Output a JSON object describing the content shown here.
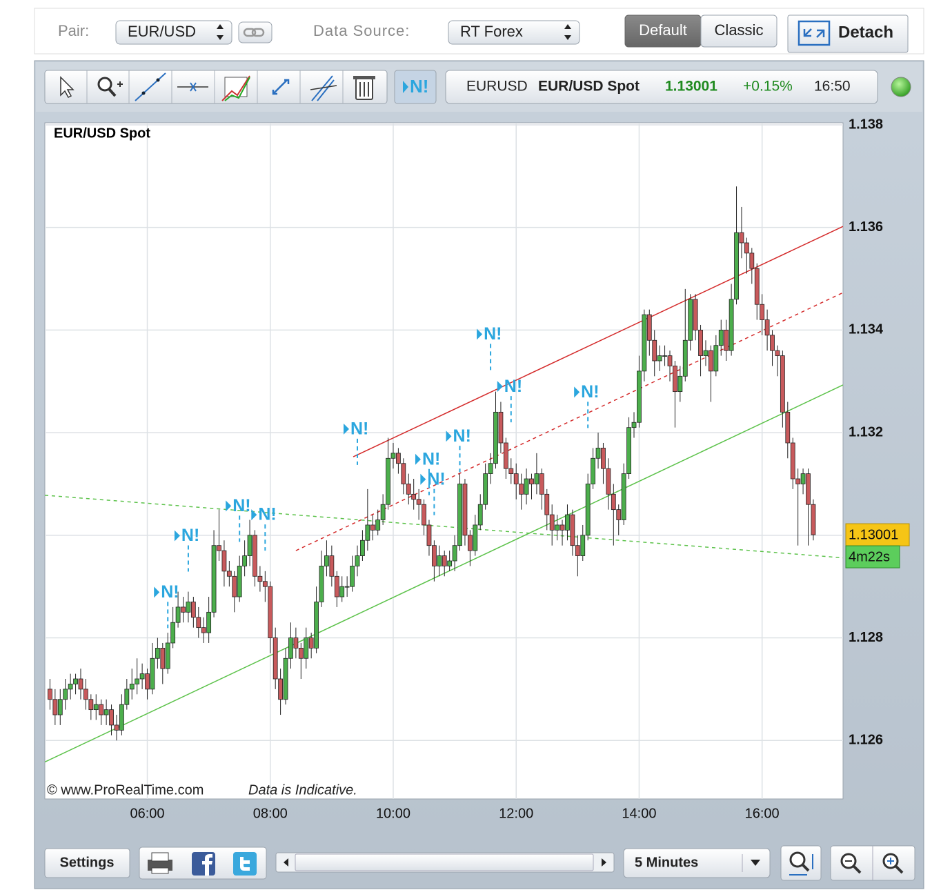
{
  "top_bar": {
    "pair_label": "Pair:",
    "pair": "EUR/USD",
    "source_label": "Data Source:",
    "source": "RT Forex",
    "views": [
      "Default",
      "Classic"
    ],
    "detach": "Detach"
  },
  "toolbar": {
    "news_button": "N!",
    "ticker": {
      "symbol": "EURUSD",
      "name": "EUR/USD Spot",
      "price": "1.13001",
      "change": "+0.15%",
      "time": "16:50"
    }
  },
  "chart_data": {
    "type": "candlestick",
    "title": "EUR/USD Spot",
    "x": [
      265,
      270,
      275,
      280,
      285,
      290,
      295,
      300,
      305,
      310,
      315,
      320,
      325,
      330,
      335,
      340,
      345,
      350,
      355,
      360,
      365,
      370,
      375,
      380,
      385,
      390,
      395,
      400,
      405,
      410,
      415,
      420,
      425,
      430,
      435,
      440,
      445,
      450,
      455,
      460,
      465,
      470,
      475,
      480,
      485,
      490,
      495,
      500,
      505,
      510,
      515,
      520,
      525,
      530,
      535,
      540,
      545,
      550,
      555,
      560,
      565,
      570,
      575,
      580,
      585,
      590,
      595,
      600,
      605,
      610,
      615,
      620,
      625,
      630,
      635,
      640,
      645,
      650,
      655,
      660,
      665,
      670,
      675,
      680,
      685,
      690,
      695,
      700,
      705,
      710,
      715,
      720,
      725,
      730,
      735,
      740,
      745,
      750,
      755,
      760,
      765,
      770,
      775,
      780,
      785,
      790,
      795,
      800,
      805,
      810,
      815,
      820,
      825,
      830,
      835,
      840,
      845,
      850,
      855,
      860,
      865,
      870,
      875,
      880,
      885,
      890,
      895,
      900,
      905,
      910,
      915,
      920,
      925,
      930,
      935,
      940,
      945,
      950,
      955,
      960,
      965,
      970,
      975,
      980,
      985,
      990,
      995,
      1000,
      1005,
      1010
    ],
    "values": [
      [
        1.127,
        1.1272,
        1.1266,
        1.1268
      ],
      [
        1.1268,
        1.127,
        1.1263,
        1.1265
      ],
      [
        1.1265,
        1.127,
        1.1263,
        1.1268
      ],
      [
        1.1268,
        1.1272,
        1.1266,
        1.127
      ],
      [
        1.127,
        1.1273,
        1.1268,
        1.1271
      ],
      [
        1.1271,
        1.1273,
        1.1269,
        1.1272
      ],
      [
        1.1272,
        1.1274,
        1.1268,
        1.127
      ],
      [
        1.127,
        1.1272,
        1.1266,
        1.1268
      ],
      [
        1.1268,
        1.1269,
        1.1264,
        1.1266
      ],
      [
        1.1266,
        1.1269,
        1.1264,
        1.1267
      ],
      [
        1.1267,
        1.1268,
        1.1263,
        1.1265
      ],
      [
        1.1265,
        1.1268,
        1.1263,
        1.1266
      ],
      [
        1.1266,
        1.1267,
        1.1261,
        1.1263
      ],
      [
        1.1263,
        1.1265,
        1.126,
        1.1262
      ],
      [
        1.1262,
        1.1269,
        1.1261,
        1.1267
      ],
      [
        1.1267,
        1.1272,
        1.1266,
        1.127
      ],
      [
        1.127,
        1.1274,
        1.1268,
        1.1271
      ],
      [
        1.1271,
        1.1276,
        1.1269,
        1.1272
      ],
      [
        1.1272,
        1.1275,
        1.127,
        1.1273
      ],
      [
        1.1273,
        1.1274,
        1.1268,
        1.127
      ],
      [
        1.127,
        1.1279,
        1.1269,
        1.1276
      ],
      [
        1.1276,
        1.128,
        1.1274,
        1.1278
      ],
      [
        1.1278,
        1.1279,
        1.1271,
        1.1274
      ],
      [
        1.1274,
        1.1281,
        1.1273,
        1.1279
      ],
      [
        1.1279,
        1.1286,
        1.1278,
        1.1283
      ],
      [
        1.1283,
        1.1289,
        1.1282,
        1.1286
      ],
      [
        1.1286,
        1.1288,
        1.1283,
        1.1285
      ],
      [
        1.1285,
        1.1289,
        1.1283,
        1.1287
      ],
      [
        1.1287,
        1.1288,
        1.1282,
        1.1284
      ],
      [
        1.1284,
        1.1286,
        1.128,
        1.1282
      ],
      [
        1.1282,
        1.1284,
        1.1279,
        1.1281
      ],
      [
        1.1281,
        1.1288,
        1.1279,
        1.1285
      ],
      [
        1.1285,
        1.1301,
        1.1284,
        1.1298
      ],
      [
        1.1298,
        1.1305,
        1.1295,
        1.1297
      ],
      [
        1.1297,
        1.1299,
        1.129,
        1.1293
      ],
      [
        1.1293,
        1.1295,
        1.129,
        1.1292
      ],
      [
        1.1292,
        1.1293,
        1.1285,
        1.1288
      ],
      [
        1.1288,
        1.1296,
        1.1287,
        1.1294
      ],
      [
        1.1294,
        1.1299,
        1.1292,
        1.1296
      ],
      [
        1.1296,
        1.1303,
        1.1294,
        1.13
      ],
      [
        1.13,
        1.1301,
        1.129,
        1.1292
      ],
      [
        1.1292,
        1.1294,
        1.1289,
        1.1291
      ],
      [
        1.1291,
        1.1293,
        1.1287,
        1.129
      ],
      [
        1.129,
        1.1291,
        1.1277,
        1.128
      ],
      [
        1.128,
        1.1282,
        1.127,
        1.1272
      ],
      [
        1.1272,
        1.1274,
        1.1265,
        1.1268
      ],
      [
        1.1268,
        1.1278,
        1.1267,
        1.1276
      ],
      [
        1.1276,
        1.1283,
        1.1274,
        1.128
      ],
      [
        1.128,
        1.1282,
        1.1276,
        1.1278
      ],
      [
        1.1278,
        1.1279,
        1.1272,
        1.1276
      ],
      [
        1.1276,
        1.1282,
        1.1274,
        1.128
      ],
      [
        1.128,
        1.1281,
        1.1276,
        1.1278
      ],
      [
        1.1278,
        1.129,
        1.1277,
        1.1287
      ],
      [
        1.1287,
        1.1297,
        1.1286,
        1.1294
      ],
      [
        1.1294,
        1.1299,
        1.1292,
        1.1296
      ],
      [
        1.1296,
        1.1298,
        1.129,
        1.1292
      ],
      [
        1.1292,
        1.1293,
        1.1286,
        1.1288
      ],
      [
        1.1288,
        1.1292,
        1.1287,
        1.129
      ],
      [
        1.129,
        1.1292,
        1.1288,
        1.129
      ],
      [
        1.129,
        1.1296,
        1.1289,
        1.1294
      ],
      [
        1.1294,
        1.1298,
        1.1292,
        1.1296
      ],
      [
        1.1296,
        1.1301,
        1.1295,
        1.1299
      ],
      [
        1.1299,
        1.1309,
        1.1297,
        1.1302
      ],
      [
        1.1302,
        1.1304,
        1.1299,
        1.1301
      ],
      [
        1.1301,
        1.1305,
        1.13,
        1.1303
      ],
      [
        1.1303,
        1.1308,
        1.1302,
        1.1306
      ],
      [
        1.1306,
        1.1319,
        1.1305,
        1.1315
      ],
      [
        1.1315,
        1.1318,
        1.1313,
        1.1316
      ],
      [
        1.1316,
        1.1317,
        1.1312,
        1.1314
      ],
      [
        1.1314,
        1.1315,
        1.1308,
        1.131
      ],
      [
        1.131,
        1.1312,
        1.1306,
        1.1308
      ],
      [
        1.1308,
        1.1311,
        1.1305,
        1.1307
      ],
      [
        1.1307,
        1.1309,
        1.1303,
        1.1306
      ],
      [
        1.1306,
        1.1307,
        1.13,
        1.1302
      ],
      [
        1.1302,
        1.1303,
        1.1296,
        1.1298
      ],
      [
        1.1298,
        1.1299,
        1.1291,
        1.1294
      ],
      [
        1.1294,
        1.1298,
        1.1292,
        1.1296
      ],
      [
        1.1296,
        1.1297,
        1.1292,
        1.1294
      ],
      [
        1.1294,
        1.1297,
        1.1293,
        1.1295
      ],
      [
        1.1295,
        1.13,
        1.1293,
        1.1298
      ],
      [
        1.1298,
        1.1312,
        1.1297,
        1.131
      ],
      [
        1.131,
        1.1311,
        1.1298,
        1.13
      ],
      [
        1.13,
        1.1301,
        1.1294,
        1.1297
      ],
      [
        1.1297,
        1.1304,
        1.1296,
        1.1302
      ],
      [
        1.1302,
        1.1308,
        1.1301,
        1.1306
      ],
      [
        1.1306,
        1.1314,
        1.1305,
        1.1312
      ],
      [
        1.1312,
        1.1316,
        1.131,
        1.1314
      ],
      [
        1.1314,
        1.1328,
        1.1313,
        1.1324
      ],
      [
        1.1324,
        1.1326,
        1.1316,
        1.1318
      ],
      [
        1.1318,
        1.1319,
        1.1311,
        1.1313
      ],
      [
        1.1313,
        1.1315,
        1.131,
        1.1312
      ],
      [
        1.1312,
        1.1314,
        1.1307,
        1.131
      ],
      [
        1.131,
        1.1312,
        1.1305,
        1.1308
      ],
      [
        1.1308,
        1.1313,
        1.1306,
        1.1311
      ],
      [
        1.1311,
        1.1312,
        1.1307,
        1.131
      ],
      [
        1.131,
        1.1316,
        1.1308,
        1.1312
      ],
      [
        1.1312,
        1.1313,
        1.1305,
        1.1308
      ],
      [
        1.1308,
        1.1309,
        1.1301,
        1.1304
      ],
      [
        1.1304,
        1.1306,
        1.1298,
        1.1301
      ],
      [
        1.1301,
        1.1304,
        1.1299,
        1.1302
      ],
      [
        1.1302,
        1.1303,
        1.1298,
        1.1301
      ],
      [
        1.1301,
        1.1306,
        1.1299,
        1.1304
      ],
      [
        1.1304,
        1.1305,
        1.1296,
        1.1298
      ],
      [
        1.1298,
        1.13,
        1.1292,
        1.1296
      ],
      [
        1.1296,
        1.1302,
        1.1295,
        1.13
      ],
      [
        1.13,
        1.1312,
        1.1299,
        1.131
      ],
      [
        1.131,
        1.1317,
        1.1309,
        1.1315
      ],
      [
        1.1315,
        1.132,
        1.1313,
        1.1317
      ],
      [
        1.1317,
        1.1318,
        1.131,
        1.1313
      ],
      [
        1.1313,
        1.1315,
        1.1305,
        1.1308
      ],
      [
        1.1308,
        1.131,
        1.1298,
        1.1305
      ],
      [
        1.1305,
        1.1306,
        1.13,
        1.1303
      ],
      [
        1.1303,
        1.1314,
        1.1302,
        1.1312
      ],
      [
        1.1312,
        1.1323,
        1.1311,
        1.1321
      ],
      [
        1.1321,
        1.1324,
        1.1319,
        1.1322
      ],
      [
        1.1322,
        1.1335,
        1.1321,
        1.1332
      ],
      [
        1.1332,
        1.1344,
        1.133,
        1.1343
      ],
      [
        1.1343,
        1.1344,
        1.1335,
        1.1338
      ],
      [
        1.1338,
        1.134,
        1.1331,
        1.1334
      ],
      [
        1.1334,
        1.1337,
        1.1332,
        1.1335
      ],
      [
        1.1335,
        1.1337,
        1.1333,
        1.1335
      ],
      [
        1.1335,
        1.1336,
        1.133,
        1.1333
      ],
      [
        1.1333,
        1.1334,
        1.1321,
        1.1328
      ],
      [
        1.1328,
        1.1333,
        1.1326,
        1.1331
      ],
      [
        1.1331,
        1.1348,
        1.133,
        1.1338
      ],
      [
        1.1338,
        1.1347,
        1.1336,
        1.1346
      ],
      [
        1.1346,
        1.1347,
        1.1338,
        1.134
      ],
      [
        1.134,
        1.1341,
        1.1331,
        1.1335
      ],
      [
        1.1335,
        1.1338,
        1.1333,
        1.1336
      ],
      [
        1.1336,
        1.1337,
        1.1326,
        1.1332
      ],
      [
        1.1332,
        1.1339,
        1.1331,
        1.1337
      ],
      [
        1.1337,
        1.1342,
        1.1335,
        1.134
      ],
      [
        1.134,
        1.1342,
        1.1334,
        1.1336
      ],
      [
        1.1336,
        1.1349,
        1.1335,
        1.1346
      ],
      [
        1.1346,
        1.1368,
        1.1345,
        1.1359
      ],
      [
        1.1359,
        1.1364,
        1.1354,
        1.1357
      ],
      [
        1.1357,
        1.1358,
        1.1351,
        1.1355
      ],
      [
        1.1355,
        1.1356,
        1.1349,
        1.1352
      ],
      [
        1.1352,
        1.1353,
        1.1342,
        1.1345
      ],
      [
        1.1345,
        1.1347,
        1.1339,
        1.1342
      ],
      [
        1.1342,
        1.1344,
        1.1336,
        1.1339
      ],
      [
        1.1339,
        1.134,
        1.1333,
        1.1336
      ],
      [
        1.1336,
        1.1337,
        1.1331,
        1.1335
      ],
      [
        1.1335,
        1.1336,
        1.1321,
        1.1324
      ],
      [
        1.1324,
        1.1326,
        1.1315,
        1.1318
      ],
      [
        1.1318,
        1.1319,
        1.1309,
        1.1311
      ],
      [
        1.1311,
        1.1313,
        1.1298,
        1.131
      ],
      [
        1.131,
        1.1313,
        1.1308,
        1.1312
      ],
      [
        1.1312,
        1.1313,
        1.1298,
        1.1306
      ],
      [
        1.1306,
        1.1307,
        1.1299,
        1.13001
      ]
    ],
    "up_color": "#4cae4c",
    "down_color": "#c85a5c",
    "xlim": [
      260,
      1039
    ],
    "xticks": [
      {
        "value": 360,
        "label": "06:00"
      },
      {
        "value": 480,
        "label": "08:00"
      },
      {
        "value": 600,
        "label": "10:00"
      },
      {
        "value": 720,
        "label": "12:00"
      },
      {
        "value": 840,
        "label": "14:00"
      },
      {
        "value": 960,
        "label": "16:00"
      }
    ],
    "ylim": [
      1.12486,
      1.13804
    ],
    "yticks": [
      1.126,
      1.128,
      1.13,
      1.132,
      1.134,
      1.136,
      1.138
    ],
    "grid": true,
    "trend_lines": [
      {
        "x1": 561,
        "y1": 1.13153,
        "x2": 1039,
        "y2": 1.13602,
        "color": "#d42a2a",
        "dashed": false
      },
      {
        "x1": 505,
        "y1": 1.1297,
        "x2": 1039,
        "y2": 1.13473,
        "color": "#d42a2a",
        "dashed": true
      },
      {
        "x1": 260,
        "y1": 1.12558,
        "x2": 1039,
        "y2": 1.13293,
        "color": "#5cc24a",
        "dashed": false
      },
      {
        "x1": 260,
        "y1": 1.13078,
        "x2": 1039,
        "y2": 1.12956,
        "color": "#5cc24a",
        "dashed": true
      }
    ],
    "news_markers": {
      "label": "N!",
      "color": "#2ba6de",
      "x": [
        380,
        400,
        450,
        475,
        565,
        635,
        640,
        665,
        695,
        715,
        790
      ],
      "y": [
        1.12889,
        1.12999,
        1.13057,
        1.1304,
        1.13207,
        1.13148,
        1.13109,
        1.13193,
        1.13392,
        1.1329,
        1.13279
      ]
    },
    "last_price": {
      "value": 1.13001,
      "countdown": "4m22s"
    },
    "footer": {
      "copyright": "©  www.ProRealTime.com",
      "note": "Data is Indicative."
    }
  },
  "bottom_bar": {
    "settings": "Settings",
    "interval": "5 Minutes"
  }
}
